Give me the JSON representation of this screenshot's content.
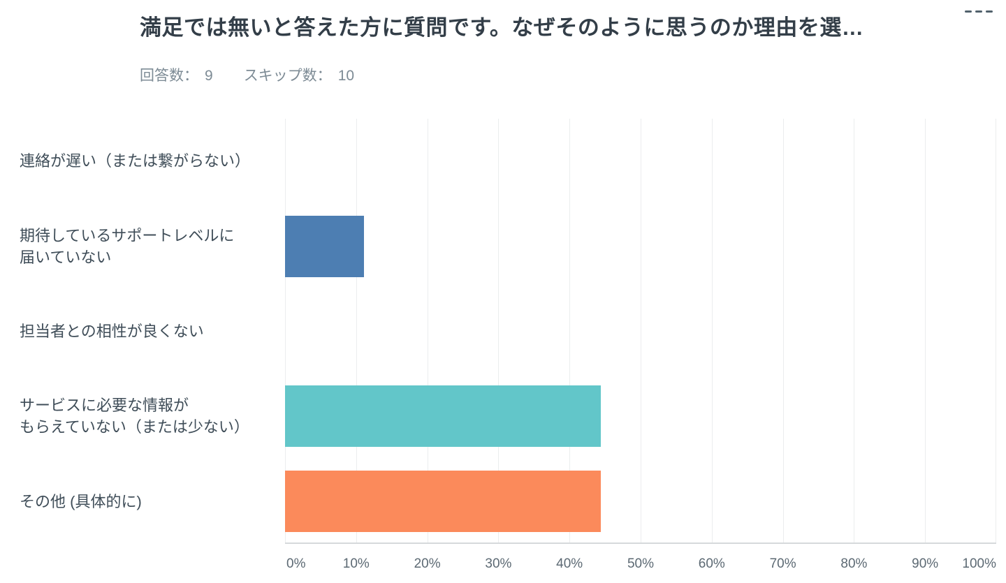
{
  "header": {
    "title": "満足では無いと答えた方に質問です。なぜそのように思うのか理由を選…",
    "stats": [
      {
        "label": "回答数：",
        "value": "9"
      },
      {
        "label": "スキップ数：",
        "value": "10"
      }
    ]
  },
  "menu": {
    "more_icon": "more-options"
  },
  "chart_data": {
    "type": "bar",
    "orientation": "horizontal",
    "title": "満足では無いと答えた方に質問です。なぜそのように思うのか理由を選…",
    "categories": [
      "連絡が遅い（または繋がらない）",
      "期待しているサポートレベルに届いていない",
      "担当者との相性が良くない",
      "サービスに必要な情報がもらえていない（または少ない）",
      "その他 (具体的に)"
    ],
    "category_lines": [
      [
        "連絡が遅い（または繋がらない）"
      ],
      [
        "期待しているサポートレベルに",
        "届いていない"
      ],
      [
        "担当者との相性が良くない"
      ],
      [
        "サービスに必要な情報が",
        "もらえていない（または少ない）"
      ],
      [
        "その他 (具体的に)"
      ]
    ],
    "values": [
      0,
      11.11,
      0,
      44.44,
      44.44
    ],
    "bar_colors": [
      null,
      "#4d7eb2",
      null,
      "#62c6c9",
      "#fb8a5b"
    ],
    "x_ticks": [
      "0%",
      "10%",
      "20%",
      "30%",
      "40%",
      "50%",
      "60%",
      "70%",
      "80%",
      "90%",
      "100%"
    ],
    "xlim": [
      0,
      100
    ],
    "grid": "vertical",
    "legend": "none"
  },
  "colors": {
    "title_text": "#333e48",
    "subtitle_text": "#7d8b95",
    "label_text": "#3f4d58",
    "tick_text": "#5c6973",
    "gridline": "#ebedee",
    "axis_line": "#d6d9db"
  }
}
